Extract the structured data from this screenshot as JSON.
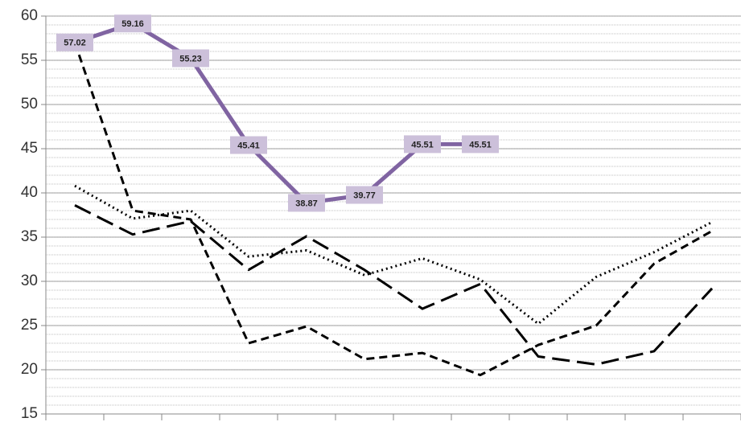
{
  "chart_data": {
    "type": "line",
    "categories": [
      null,
      null,
      null,
      null,
      null,
      null,
      null,
      null,
      null,
      null,
      null,
      null
    ],
    "series": [
      {
        "color": "#000000",
        "style": "dotted",
        "values": [
          40.8,
          37.1,
          38.0,
          32.8,
          33.5,
          30.7,
          32.6,
          30.2,
          25.2,
          30.5,
          33.3,
          36.7
        ]
      },
      {
        "color": "#000000",
        "style": "long-dash",
        "values": [
          38.6,
          35.3,
          36.8,
          31.3,
          35.1,
          31.3,
          26.9,
          29.7,
          21.5,
          20.6,
          22.1,
          29.2
        ]
      },
      {
        "color": "#000000",
        "style": "dashed",
        "values": [
          57.0,
          38.0,
          37.0,
          23.0,
          24.9,
          21.2,
          21.9,
          19.4,
          22.8,
          25.0,
          32.0,
          35.7
        ]
      },
      {
        "color": "#8064a2",
        "style": "solid",
        "data_labels": true,
        "values": [
          57.02,
          59.16,
          55.23,
          45.41,
          38.87,
          39.77,
          45.51,
          45.51,
          null,
          null,
          null,
          null
        ]
      }
    ],
    "ylim": [
      15,
      60
    ],
    "yticks": [
      15,
      20,
      25,
      30,
      35,
      40,
      45,
      50,
      55,
      60
    ],
    "grid": true,
    "minor_grid_step": 1
  }
}
